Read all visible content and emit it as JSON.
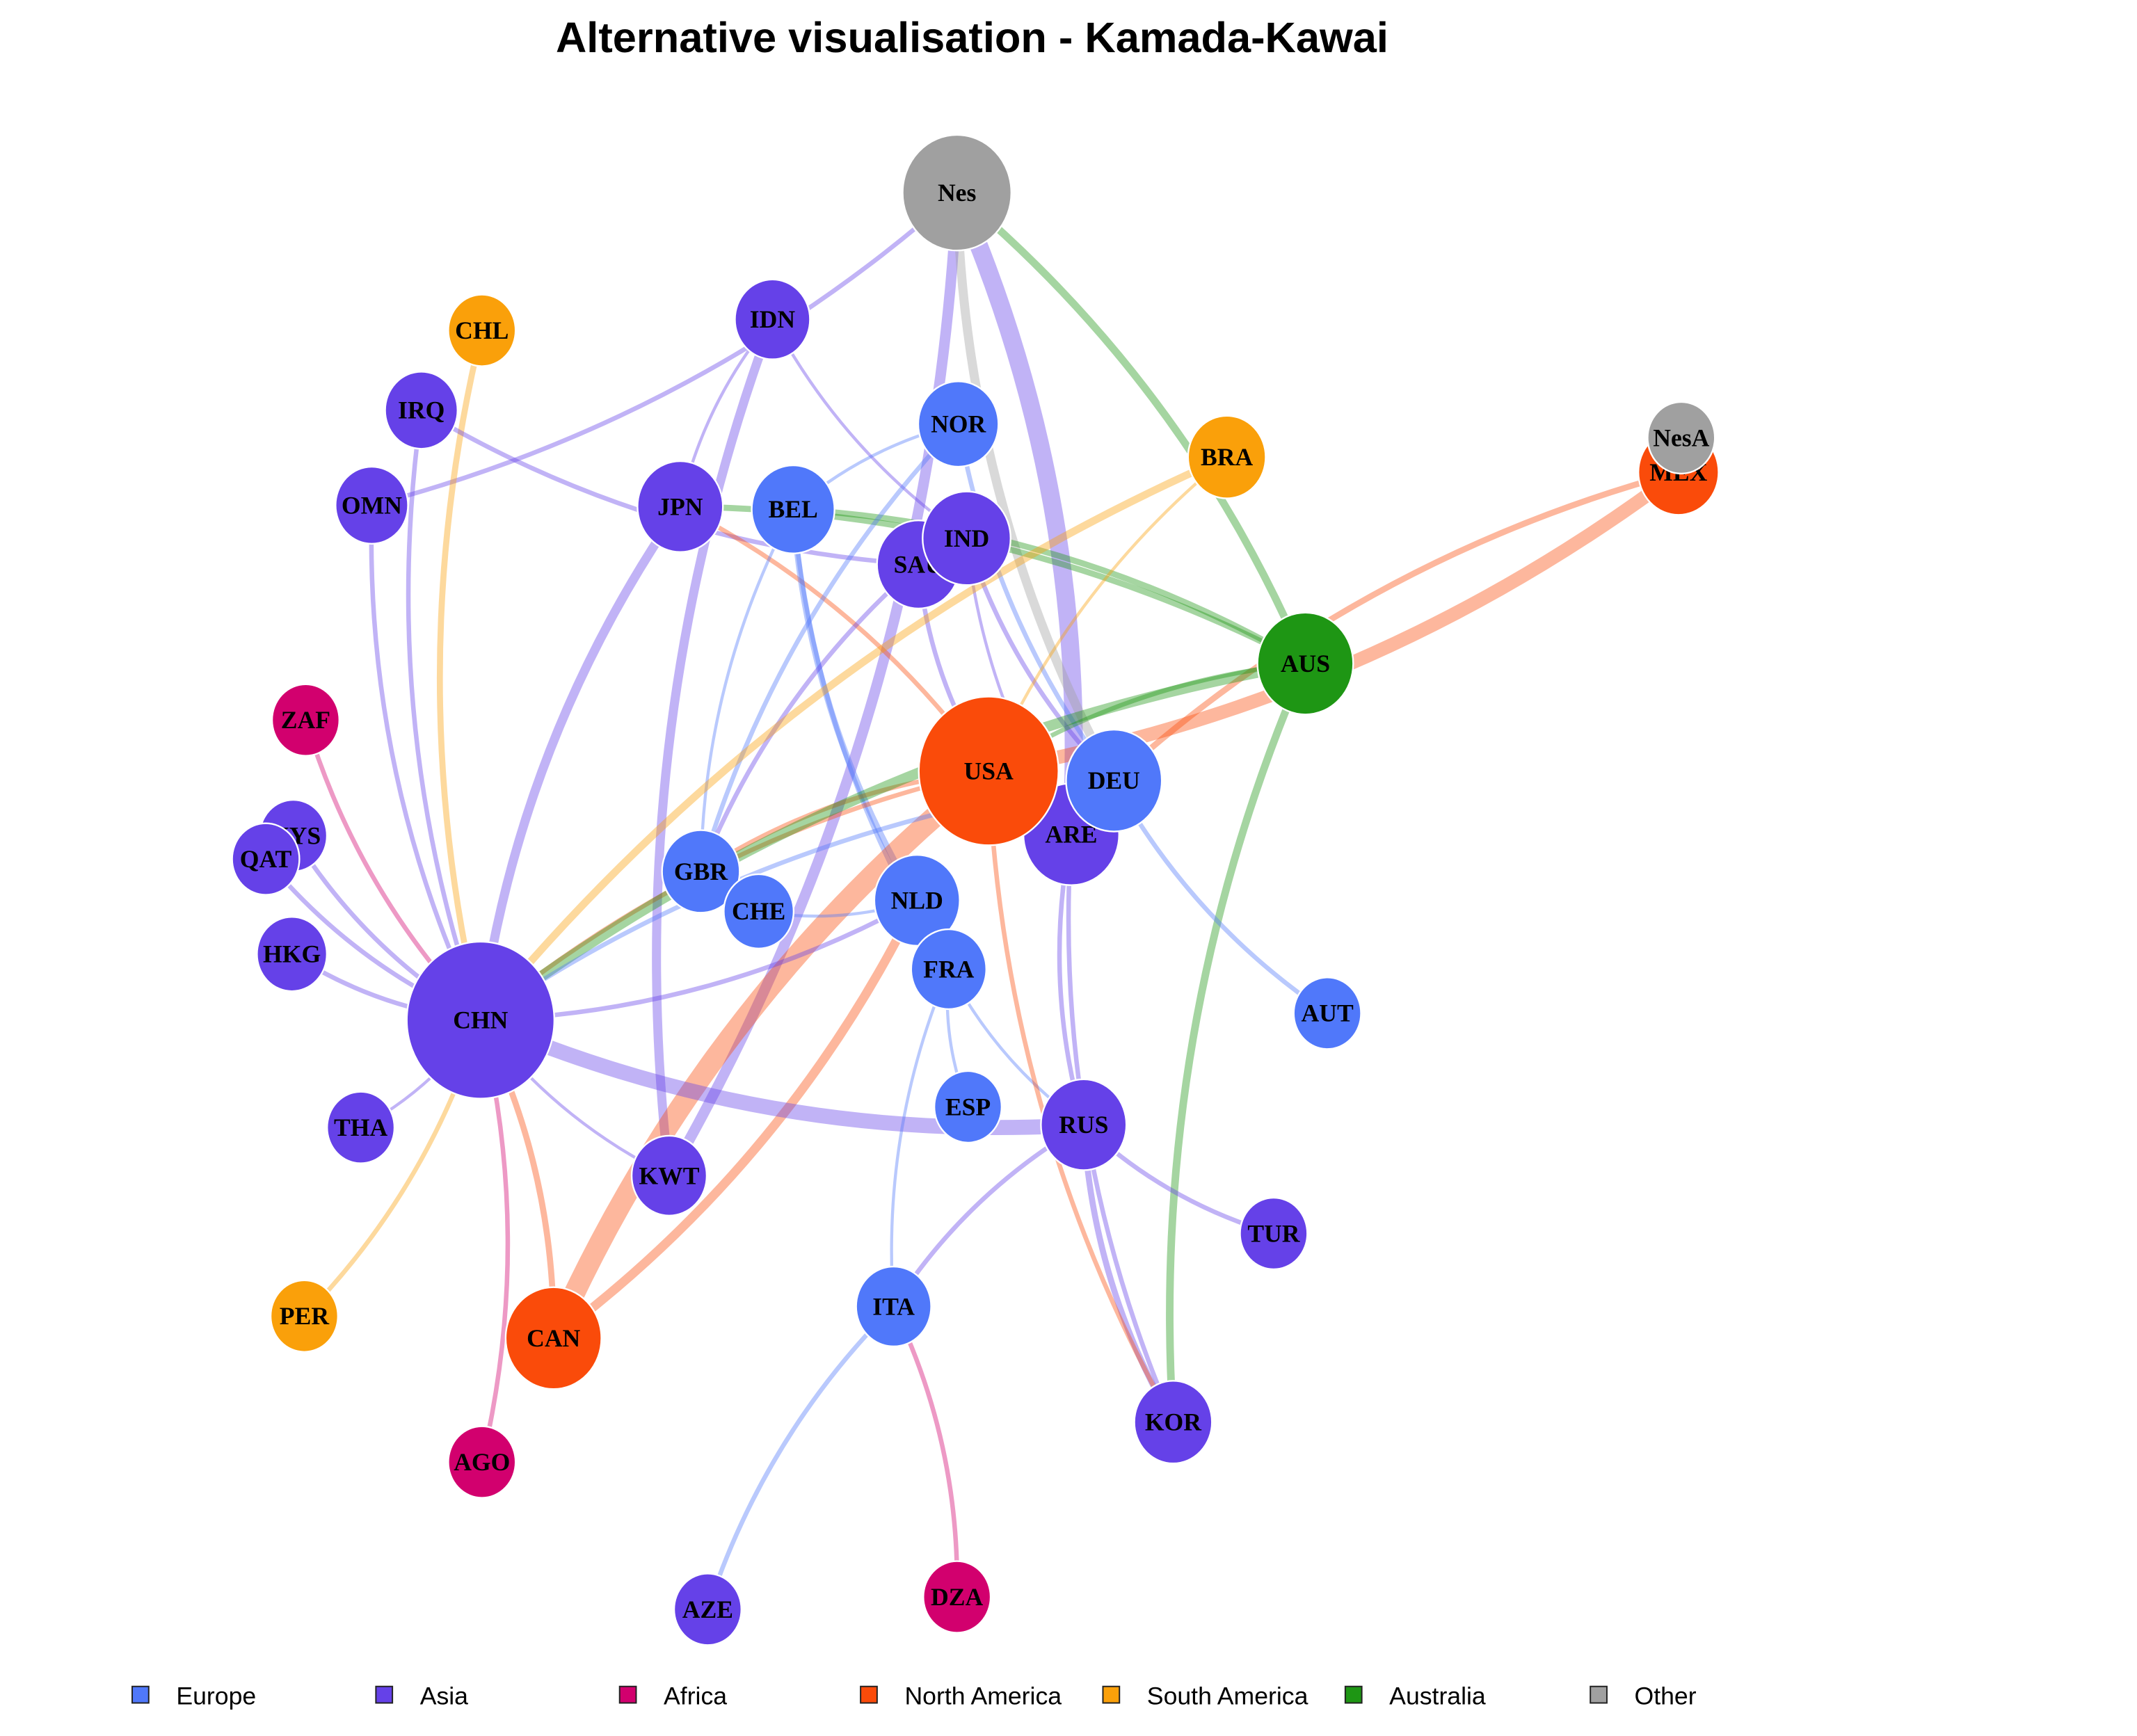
{
  "title": "Alternative visualisation - Kamada-Kawai",
  "colors": {
    "Europe": "#5078FA",
    "Asia": "#6541E8",
    "Africa": "#D2006E",
    "North America": "#FA4B0A",
    "South America": "#FAA00A",
    "Australia": "#1E9614",
    "Other": "#A0A0A0"
  },
  "legend": [
    "Europe",
    "Asia",
    "Africa",
    "North America",
    "South America",
    "Australia",
    "Other"
  ],
  "nodes": [
    {
      "id": "Nes",
      "group": "Other",
      "size": 42
    },
    {
      "id": "CHL",
      "group": "South America",
      "size": 26
    },
    {
      "id": "IDN",
      "group": "Asia",
      "size": 29
    },
    {
      "id": "IRQ",
      "group": "Asia",
      "size": 28
    },
    {
      "id": "NOR",
      "group": "Europe",
      "size": 31
    },
    {
      "id": "BRA",
      "group": "South America",
      "size": 30
    },
    {
      "id": "MEX",
      "group": "North America",
      "size": 31
    },
    {
      "id": "NesA",
      "group": "Other",
      "size": 26
    },
    {
      "id": "OMN",
      "group": "Asia",
      "size": 28
    },
    {
      "id": "JPN",
      "group": "Asia",
      "size": 33
    },
    {
      "id": "BEL",
      "group": "Europe",
      "size": 32
    },
    {
      "id": "SAU",
      "group": "Asia",
      "size": 32
    },
    {
      "id": "IND",
      "group": "Asia",
      "size": 34
    },
    {
      "id": "AUS",
      "group": "Australia",
      "size": 37
    },
    {
      "id": "ZAF",
      "group": "Africa",
      "size": 26
    },
    {
      "id": "ARE",
      "group": "Asia",
      "size": 37
    },
    {
      "id": "USA",
      "group": "North America",
      "size": 54
    },
    {
      "id": "DEU",
      "group": "Europe",
      "size": 37
    },
    {
      "id": "MYS",
      "group": "Asia",
      "size": 26
    },
    {
      "id": "QAT",
      "group": "Asia",
      "size": 26
    },
    {
      "id": "GBR",
      "group": "Europe",
      "size": 30
    },
    {
      "id": "CHE",
      "group": "Europe",
      "size": 27
    },
    {
      "id": "NLD",
      "group": "Europe",
      "size": 33
    },
    {
      "id": "HKG",
      "group": "Asia",
      "size": 27
    },
    {
      "id": "FRA",
      "group": "Europe",
      "size": 29
    },
    {
      "id": "CHN",
      "group": "Asia",
      "size": 57
    },
    {
      "id": "AUT",
      "group": "Europe",
      "size": 26
    },
    {
      "id": "ESP",
      "group": "Europe",
      "size": 26
    },
    {
      "id": "RUS",
      "group": "Asia",
      "size": 33
    },
    {
      "id": "THA",
      "group": "Asia",
      "size": 26
    },
    {
      "id": "KWT",
      "group": "Asia",
      "size": 29
    },
    {
      "id": "TUR",
      "group": "Asia",
      "size": 26
    },
    {
      "id": "ITA",
      "group": "Europe",
      "size": 29
    },
    {
      "id": "PER",
      "group": "South America",
      "size": 26
    },
    {
      "id": "CAN",
      "group": "North America",
      "size": 37
    },
    {
      "id": "KOR",
      "group": "Asia",
      "size": 30
    },
    {
      "id": "AGO",
      "group": "Africa",
      "size": 26
    },
    {
      "id": "DZA",
      "group": "Africa",
      "size": 26
    },
    {
      "id": "AZE",
      "group": "Asia",
      "size": 26
    }
  ],
  "edges": [
    {
      "source": "OMN",
      "target": "Nes",
      "weight": 3
    },
    {
      "source": "KWT",
      "target": "Nes",
      "weight": 7
    },
    {
      "source": "ARE",
      "target": "Nes",
      "weight": 12
    },
    {
      "source": "Nes",
      "target": "DEU",
      "weight": 6
    },
    {
      "source": "AUS",
      "target": "Nes",
      "weight": 5
    },
    {
      "source": "AUS",
      "target": "KOR",
      "weight": 5
    },
    {
      "source": "CHL",
      "target": "CHN",
      "weight": 4
    },
    {
      "source": "IDN",
      "target": "KWT",
      "weight": 6
    },
    {
      "source": "IDN",
      "target": "JPN",
      "weight": 2
    },
    {
      "source": "IDN",
      "target": "IND",
      "weight": 2
    },
    {
      "source": "IRQ",
      "target": "CHN",
      "weight": 3
    },
    {
      "source": "IRQ",
      "target": "SAU",
      "weight": 3
    },
    {
      "source": "OMN",
      "target": "CHN",
      "weight": 3
    },
    {
      "source": "JPN",
      "target": "CHN",
      "weight": 6
    },
    {
      "source": "USA",
      "target": "JPN",
      "weight": 3
    },
    {
      "source": "AUS",
      "target": "JPN",
      "weight": 4
    },
    {
      "source": "AUS",
      "target": "BEL",
      "weight": 4
    },
    {
      "source": "BEL",
      "target": "NLD",
      "weight": 4
    },
    {
      "source": "BEL",
      "target": "FRA",
      "weight": 3
    },
    {
      "source": "BEL",
      "target": "GBR",
      "weight": 2
    },
    {
      "source": "NOR",
      "target": "BEL",
      "weight": 2
    },
    {
      "source": "NOR",
      "target": "DEU",
      "weight": 3
    },
    {
      "source": "NOR",
      "target": "GBR",
      "weight": 3
    },
    {
      "source": "SAU",
      "target": "GBR",
      "weight": 3
    },
    {
      "source": "SAU",
      "target": "USA",
      "weight": 3
    },
    {
      "source": "IND",
      "target": "ARE",
      "weight": 2
    },
    {
      "source": "IND",
      "target": "DEU",
      "weight": 3
    },
    {
      "source": "BRA",
      "target": "CHN",
      "weight": 5
    },
    {
      "source": "BRA",
      "target": "USA",
      "weight": 2
    },
    {
      "source": "USA",
      "target": "MEX",
      "weight": 9
    },
    {
      "source": "MEX",
      "target": "DEU",
      "weight": 4
    },
    {
      "source": "USA",
      "target": "CAN",
      "weight": 14
    },
    {
      "source": "USA",
      "target": "CHN",
      "weight": 3
    },
    {
      "source": "USA",
      "target": "GBR",
      "weight": 3
    },
    {
      "source": "CAN",
      "target": "NLD",
      "weight": 6
    },
    {
      "source": "CAN",
      "target": "CHN",
      "weight": 4
    },
    {
      "source": "AUS",
      "target": "CHN",
      "weight": 7
    },
    {
      "source": "AUS",
      "target": "USA",
      "weight": 3
    },
    {
      "source": "DEU",
      "target": "AUT",
      "weight": 3
    },
    {
      "source": "DEU",
      "target": "CHN",
      "weight": 3
    },
    {
      "source": "ARE",
      "target": "RUS",
      "weight": 3
    },
    {
      "source": "ZAF",
      "target": "CHN",
      "weight": 3
    },
    {
      "source": "MYS",
      "target": "CHN",
      "weight": 3
    },
    {
      "source": "QAT",
      "target": "CHN",
      "weight": 3
    },
    {
      "source": "HKG",
      "target": "CHN",
      "weight": 3
    },
    {
      "source": "THA",
      "target": "CHN",
      "weight": 2
    },
    {
      "source": "PER",
      "target": "CHN",
      "weight": 3
    },
    {
      "source": "AGO",
      "target": "CHN",
      "weight": 3
    },
    {
      "source": "CHN",
      "target": "KWT",
      "weight": 2
    },
    {
      "source": "CHN",
      "target": "RUS",
      "weight": 10
    },
    {
      "source": "CHN",
      "target": "NLD",
      "weight": 3
    },
    {
      "source": "CHE",
      "target": "NLD",
      "weight": 2
    },
    {
      "source": "FRA",
      "target": "ESP",
      "weight": 2
    },
    {
      "source": "FRA",
      "target": "ITA",
      "weight": 2
    },
    {
      "source": "FRA",
      "target": "RUS",
      "weight": 2
    },
    {
      "source": "RUS",
      "target": "ITA",
      "weight": 3
    },
    {
      "source": "RUS",
      "target": "TUR",
      "weight": 3
    },
    {
      "source": "RUS",
      "target": "KOR",
      "weight": 4
    },
    {
      "source": "USA",
      "target": "KOR",
      "weight": 3
    },
    {
      "source": "ITA",
      "target": "AZE",
      "weight": 3
    },
    {
      "source": "DZA",
      "target": "ITA",
      "weight": 3
    },
    {
      "source": "ARE",
      "target": "KOR",
      "weight": 3
    }
  ]
}
